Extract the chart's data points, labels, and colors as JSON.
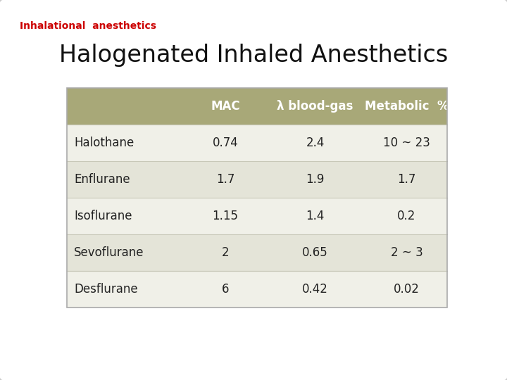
{
  "title": "Halogenated Inhaled Anesthetics",
  "subtitle": "Inhalational  anesthetics",
  "subtitle_color": "#cc0000",
  "background_color": "#f0f0f0",
  "border_color": "#cccccc",
  "header": [
    "",
    "MAC",
    "λ blood-gas",
    "Metabolic  %"
  ],
  "header_bg": "#a8a878",
  "header_fg": "#ffffff",
  "rows": [
    [
      "Halothane",
      "0.74",
      "2.4",
      "10 ~ 23"
    ],
    [
      "Enflurane",
      "1.7",
      "1.9",
      "1.7"
    ],
    [
      "Isoflurane",
      "1.15",
      "1.4",
      "0.2"
    ],
    [
      "Sevoflurane",
      "2",
      "0.65",
      "2 ~ 3"
    ],
    [
      "Desflurane",
      "6",
      "0.42",
      "0.02"
    ]
  ],
  "row_bg_odd": "#f0f0e8",
  "row_bg_even": "#e4e4d8",
  "row_fg": "#222222",
  "separator_color": "#c8c8b8",
  "outer_border_color": "#aaaaaa",
  "title_fontsize": 24,
  "subtitle_fontsize": 10,
  "header_fontsize": 12,
  "row_fontsize": 12
}
